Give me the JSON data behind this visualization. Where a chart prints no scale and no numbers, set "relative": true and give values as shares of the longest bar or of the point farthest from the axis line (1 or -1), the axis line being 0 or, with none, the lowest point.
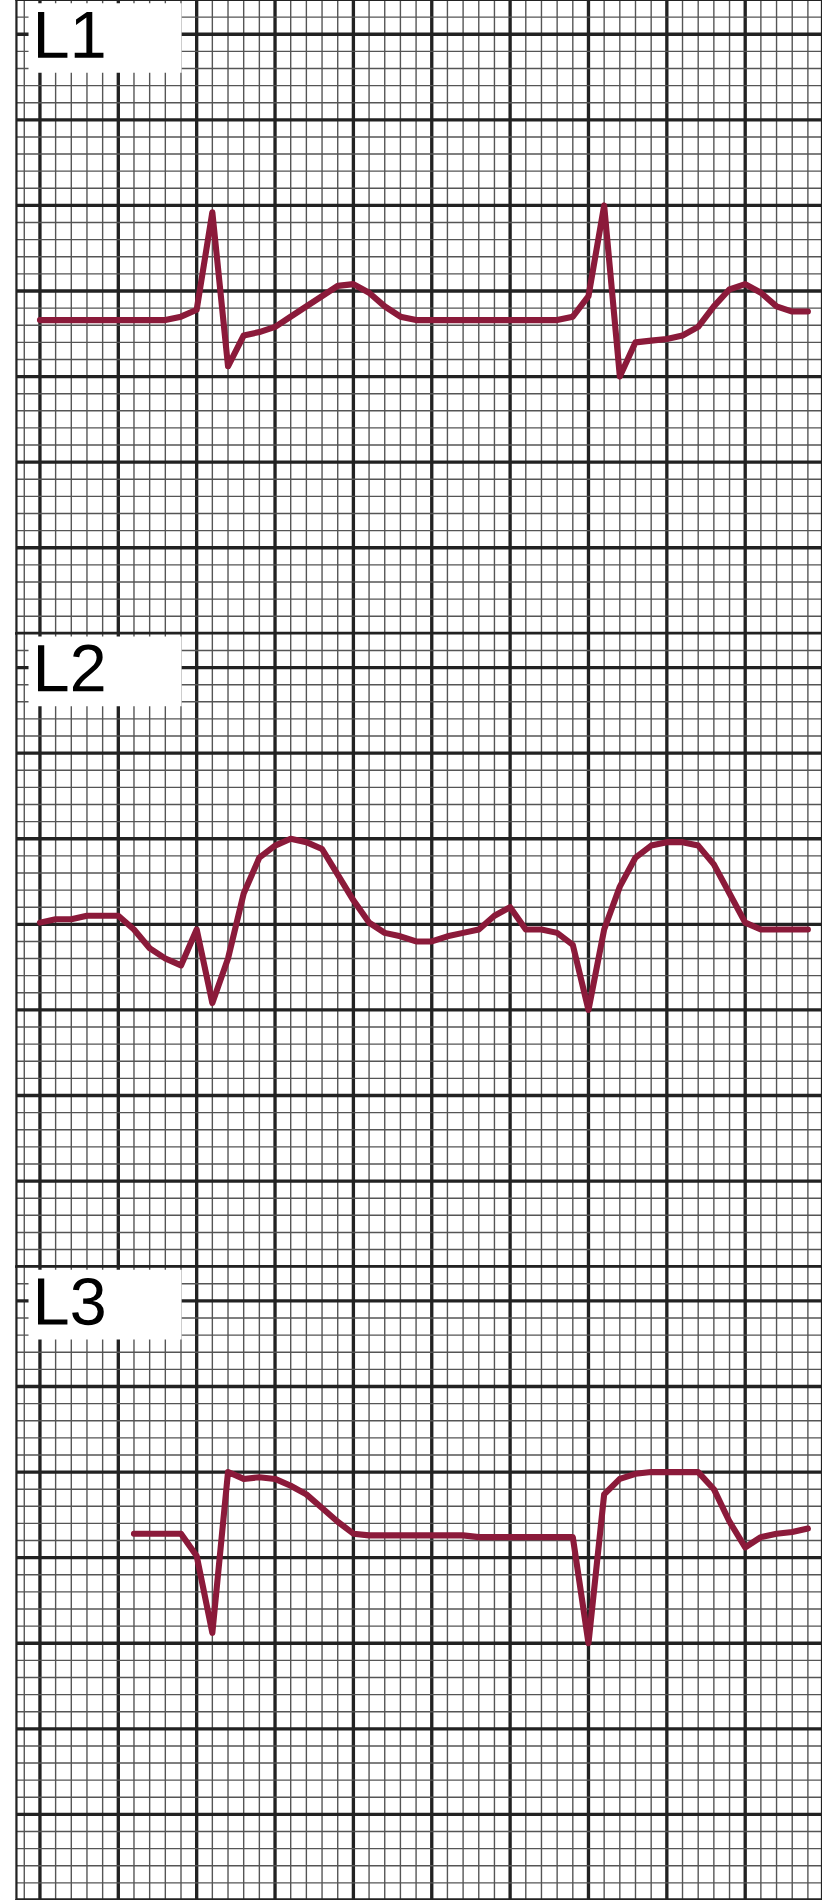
{
  "chart_data": [
    {
      "type": "line",
      "title": "L1",
      "relative": true,
      "grid": true,
      "tick_labels": false,
      "categories": [
        null,
        null,
        null,
        null,
        null,
        null,
        null,
        null,
        null,
        null,
        null,
        null,
        null,
        null,
        null,
        null,
        null,
        null,
        null,
        null,
        null,
        null,
        null,
        null,
        null,
        null,
        null,
        null,
        null,
        null,
        null,
        null,
        null,
        null,
        null,
        null,
        null,
        null,
        null,
        null,
        null,
        null,
        null,
        null,
        null,
        null,
        null,
        null,
        null,
        null
      ],
      "series": [
        {
          "color": "#8b1a3a",
          "values": [
            0.33,
            0.33,
            0.33,
            0.33,
            0.33,
            0.33,
            0.33,
            0.33,
            0.33,
            0.35,
            0.39,
            0.96,
            0.06,
            0.24,
            0.26,
            0.29,
            0.35,
            0.41,
            0.47,
            0.53,
            0.54,
            0.49,
            0.41,
            0.35,
            0.33,
            0.33,
            0.33,
            0.33,
            0.33,
            0.33,
            0.33,
            0.33,
            0.33,
            0.33,
            0.35,
            0.47,
            1,
            0,
            0.2,
            0.21,
            0.22,
            0.24,
            0.29,
            0.41,
            0.51,
            0.54,
            0.49,
            0.41,
            0.38,
            0.38
          ]
        }
      ]
    },
    {
      "type": "line",
      "title": "L2",
      "relative": true,
      "grid": true,
      "tick_labels": false,
      "categories": [
        null,
        null,
        null,
        null,
        null,
        null,
        null,
        null,
        null,
        null,
        null,
        null,
        null,
        null,
        null,
        null,
        null,
        null,
        null,
        null,
        null,
        null,
        null,
        null,
        null,
        null,
        null,
        null,
        null,
        null,
        null,
        null,
        null,
        null,
        null,
        null,
        null,
        null,
        null,
        null,
        null,
        null,
        null,
        null,
        null,
        null,
        null,
        null,
        null,
        null
      ],
      "series": [
        {
          "color": "#8b1a3a",
          "values": [
            0.51,
            0.53,
            0.53,
            0.55,
            0.55,
            0.55,
            0.47,
            0.36,
            0.3,
            0.26,
            0.47,
            0.04,
            0.3,
            0.68,
            0.89,
            0.96,
            1,
            0.98,
            0.94,
            0.79,
            0.64,
            0.51,
            0.45,
            0.43,
            0.4,
            0.4,
            0.43,
            0.45,
            0.47,
            0.55,
            0.6,
            0.47,
            0.47,
            0.45,
            0.38,
            0,
            0.47,
            0.72,
            0.89,
            0.96,
            0.98,
            0.98,
            0.96,
            0.85,
            0.68,
            0.51,
            0.47,
            0.47,
            0.47,
            0.47
          ]
        }
      ]
    },
    {
      "type": "line",
      "title": "L3",
      "relative": true,
      "grid": true,
      "tick_labels": false,
      "categories": [
        null,
        null,
        null,
        null,
        null,
        null,
        null,
        null,
        null,
        null,
        null,
        null,
        null,
        null,
        null,
        null,
        null,
        null,
        null,
        null,
        null,
        null,
        null,
        null,
        null,
        null,
        null,
        null,
        null,
        null,
        null,
        null,
        null,
        null,
        null,
        null,
        null,
        null,
        null,
        null,
        null,
        null,
        null,
        null,
        null,
        null,
        null,
        null,
        null,
        null
      ],
      "series": [
        {
          "color": "#8b1a3a",
          "values": [
            null,
            null,
            null,
            null,
            null,
            null,
            0.64,
            0.64,
            0.64,
            0.64,
            0.51,
            0.06,
            1,
            0.96,
            0.97,
            0.96,
            0.92,
            0.87,
            0.79,
            0.71,
            0.64,
            0.63,
            0.63,
            0.63,
            0.63,
            0.63,
            0.63,
            0.63,
            0.62,
            0.62,
            0.62,
            0.62,
            0.62,
            0.62,
            0.62,
            0,
            0.87,
            0.96,
            0.99,
            1,
            1,
            1,
            1,
            0.9,
            0.71,
            0.56,
            0.62,
            0.64,
            0.65,
            0.67
          ]
        }
      ]
    }
  ]
}
